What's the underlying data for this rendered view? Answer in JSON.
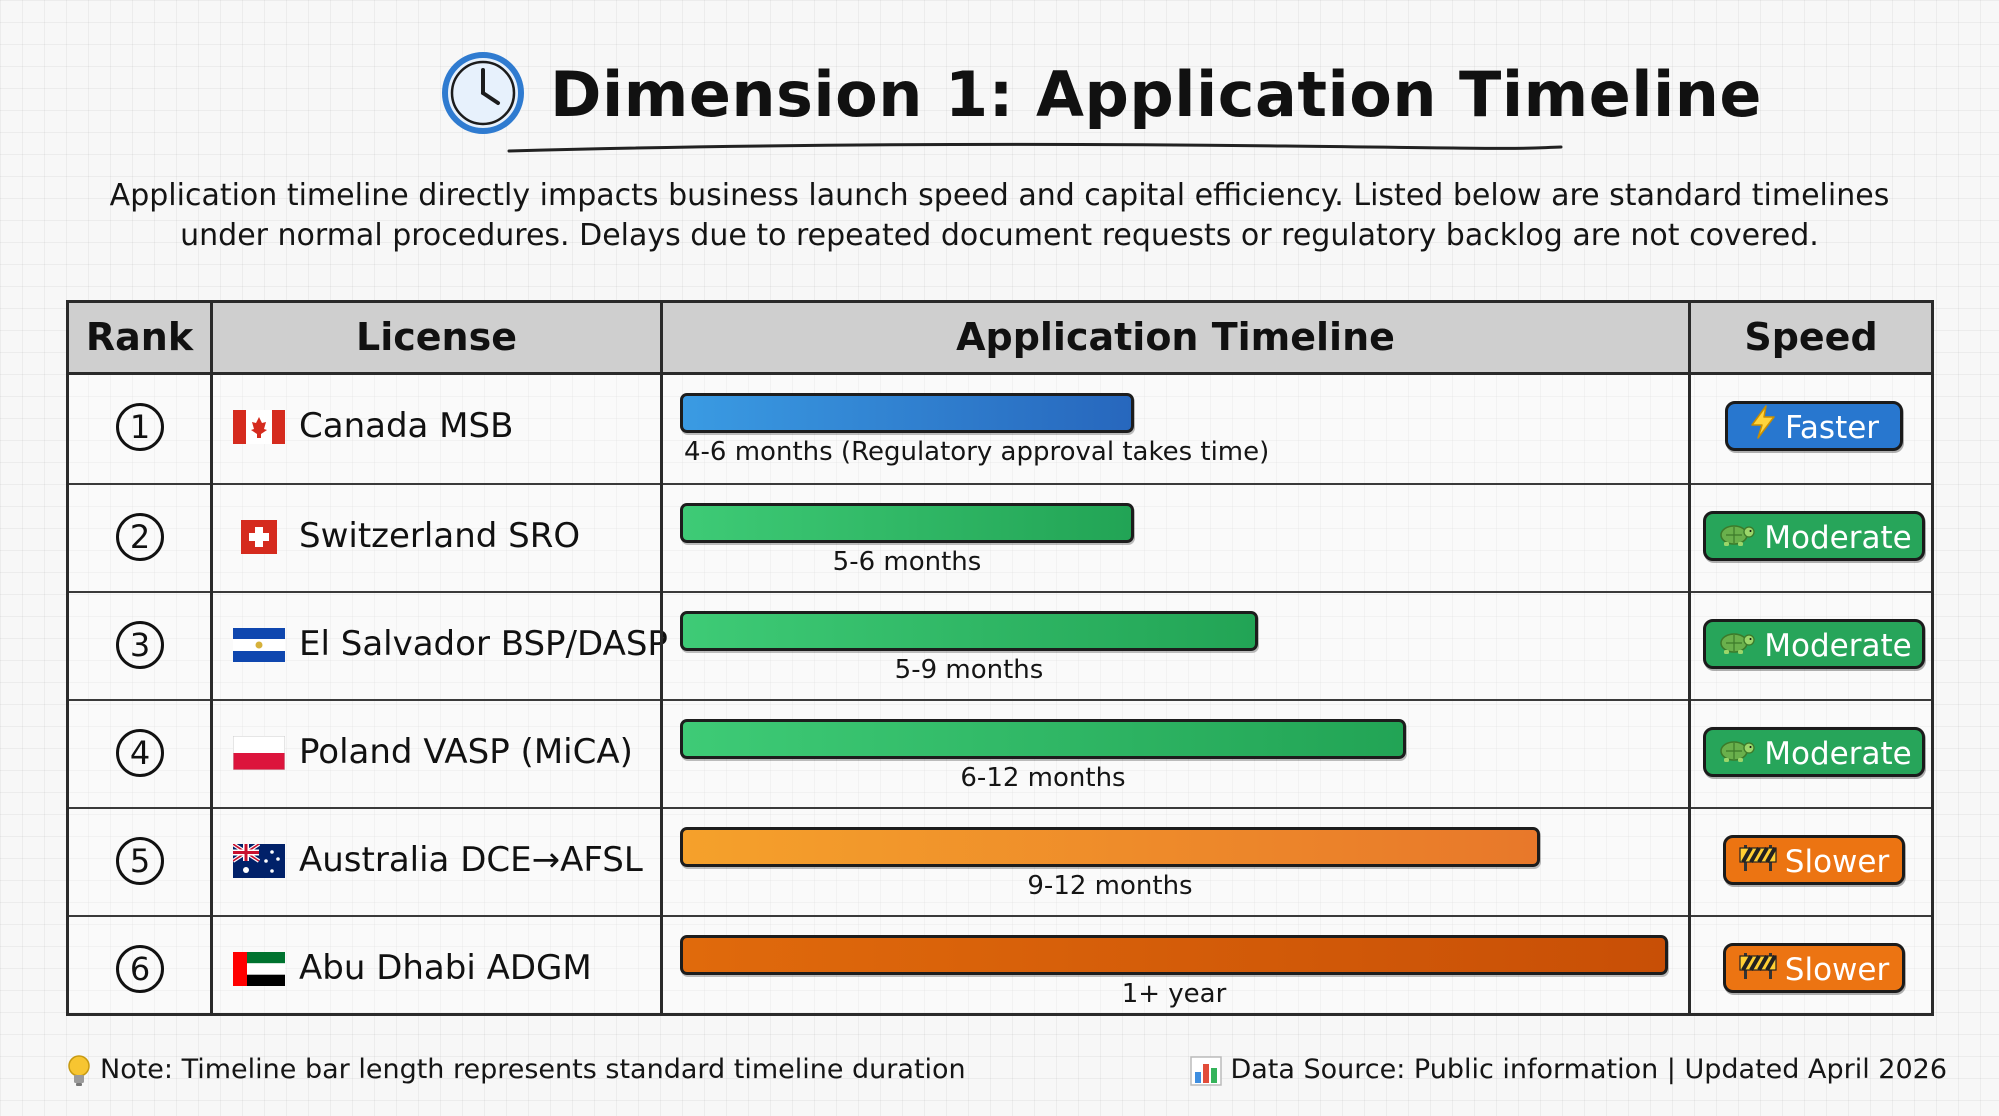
{
  "header": {
    "title": "Dimension 1: Application Timeline",
    "description_line1": "Application timeline directly impacts business launch speed and capital efficiency. Listed below are standard timelines",
    "description_line2": "under normal procedures. Delays due to repeated document requests or regulatory backlog are not covered."
  },
  "icons": {
    "title": "clock-icon",
    "note": "lightbulb-icon",
    "source": "bar-chart-icon"
  },
  "colors": {
    "blue": "#2f86d4",
    "green": "#2db865",
    "orange": "#ef8c24",
    "dark_orange": "#d35a08",
    "badge_faster": "#2877cf",
    "badge_moderate": "#27a55a",
    "badge_slower": "#ec7412"
  },
  "chart_data": {
    "type": "table",
    "columns": [
      "Rank",
      "License",
      "Application Timeline",
      "Speed"
    ],
    "rows": [
      {
        "rank": "1",
        "flag": "canada-flag-icon",
        "license": "Canada MSB",
        "timeline_label": "4-6 months (Regulatory approval takes time)",
        "bar_fraction": 0.46,
        "bar_color": "blue",
        "speed": "Faster",
        "speed_icon": "lightning-icon",
        "speed_color": "badge_faster"
      },
      {
        "rank": "2",
        "flag": "switzerland-flag-icon",
        "license": "Switzerland SRO",
        "timeline_label": "5-6 months",
        "bar_fraction": 0.46,
        "bar_color": "green",
        "speed": "Moderate",
        "speed_icon": "turtle-icon",
        "speed_color": "badge_moderate"
      },
      {
        "rank": "3",
        "flag": "el-salvador-flag-icon",
        "license": "El Salvador BSP/DASP",
        "timeline_label": "5-9 months",
        "bar_fraction": 0.585,
        "bar_color": "green",
        "speed": "Moderate",
        "speed_icon": "turtle-icon",
        "speed_color": "badge_moderate"
      },
      {
        "rank": "4",
        "flag": "poland-flag-icon",
        "license": "Poland VASP (MiCA)",
        "timeline_label": "6-12 months",
        "bar_fraction": 0.735,
        "bar_color": "green",
        "speed": "Moderate",
        "speed_icon": "turtle-icon",
        "speed_color": "badge_moderate"
      },
      {
        "rank": "5",
        "flag": "australia-flag-icon",
        "license": "Australia DCE→AFSL",
        "timeline_label": "9-12 months",
        "bar_fraction": 0.87,
        "bar_color": "orange",
        "speed": "Slower",
        "speed_icon": "barrier-icon",
        "speed_color": "badge_slower"
      },
      {
        "rank": "6",
        "flag": "uae-flag-icon",
        "license": "Abu Dhabi ADGM",
        "timeline_label": "1+ year",
        "bar_fraction": 1.0,
        "bar_color": "dark_orange",
        "speed": "Slower",
        "speed_icon": "barrier-icon",
        "speed_color": "badge_slower"
      }
    ]
  },
  "footer": {
    "note": "Note: Timeline bar length represents standard timeline duration",
    "source": "Data Source: Public information | Updated April 2026"
  }
}
